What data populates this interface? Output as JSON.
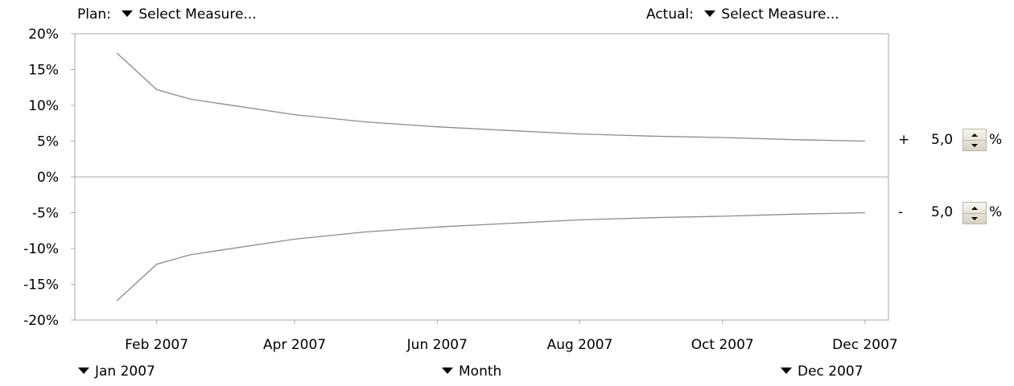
{
  "plan": {
    "label": "Plan:",
    "value": "Select Measure..."
  },
  "actual": {
    "label": "Actual:",
    "value": "Select Measure..."
  },
  "range_start": {
    "value": "Jan 2007"
  },
  "granularity": {
    "value": "Month"
  },
  "range_end": {
    "value": "Dec 2007"
  },
  "tolerance_upper": {
    "sign": "+",
    "value": "5,0",
    "unit": "%"
  },
  "tolerance_lower": {
    "sign": "-",
    "value": "5,0",
    "unit": "%"
  },
  "colors": {
    "line": "#8c8c8c",
    "axis": "#a8a8a8"
  },
  "chart_data": {
    "type": "line",
    "ylim": [
      -20,
      20
    ],
    "y_ticks": [
      20,
      15,
      10,
      5,
      0,
      -5,
      -10,
      -15,
      -20
    ],
    "y_tick_labels": [
      "20%",
      "15%",
      "10%",
      "5%",
      "0%",
      "-5%",
      "-10%",
      "-15%",
      "-20%"
    ],
    "x_ticks": [
      "2007-02-01",
      "2007-04-01",
      "2007-06-01",
      "2007-08-01",
      "2007-10-01",
      "2007-12-01"
    ],
    "x_tick_labels": [
      "Feb 2007",
      "Apr 2007",
      "Jun 2007",
      "Aug 2007",
      "Oct 2007",
      "Dec 2007"
    ],
    "x": [
      "2007-01-15",
      "2007-02-01",
      "2007-02-15",
      "2007-03-01",
      "2007-04-01",
      "2007-05-01",
      "2007-06-01",
      "2007-07-01",
      "2007-08-01",
      "2007-09-01",
      "2007-10-01",
      "2007-11-01",
      "2007-12-01"
    ],
    "series": [
      {
        "values": [
          17.3,
          12.2,
          10.9,
          10.2,
          8.7,
          7.7,
          7.0,
          6.5,
          6.0,
          5.7,
          5.5,
          5.2,
          5.0
        ]
      },
      {
        "values": [
          -17.3,
          -12.2,
          -10.9,
          -10.2,
          -8.7,
          -7.7,
          -7.0,
          -6.5,
          -6.0,
          -5.7,
          -5.5,
          -5.2,
          -5.0
        ]
      }
    ],
    "grid": false
  }
}
